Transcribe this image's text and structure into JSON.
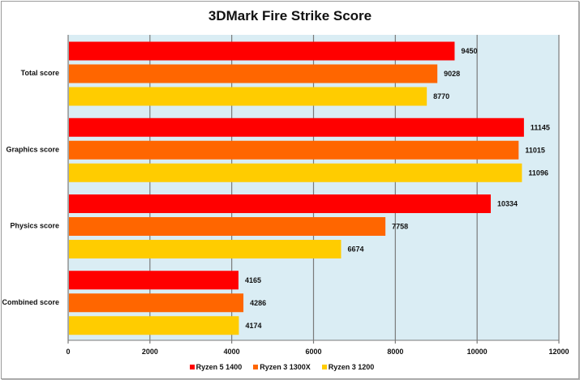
{
  "chart_data": {
    "type": "bar",
    "orientation": "horizontal",
    "title": "3DMark Fire Strike Score",
    "categories": [
      "Total score",
      "Graphics score",
      "Physics score",
      "Combined score"
    ],
    "series": [
      {
        "name": "Ryzen 5 1400",
        "color": "#ff0000",
        "values": [
          9450,
          11145,
          10334,
          4165
        ]
      },
      {
        "name": "Ryzen 3 1300X",
        "color": "#ff6600",
        "values": [
          9028,
          11015,
          7758,
          4286
        ]
      },
      {
        "name": "Ryzen 3 1200",
        "color": "#ffcc00",
        "values": [
          8770,
          11096,
          6674,
          4174
        ]
      }
    ],
    "xlim": [
      0,
      12000
    ],
    "xticks": [
      "0",
      "2000",
      "4000",
      "6000",
      "8000",
      "10000",
      "12000"
    ],
    "grid": "vertical",
    "plot_background": "#daedf4",
    "legend": "bottom"
  }
}
